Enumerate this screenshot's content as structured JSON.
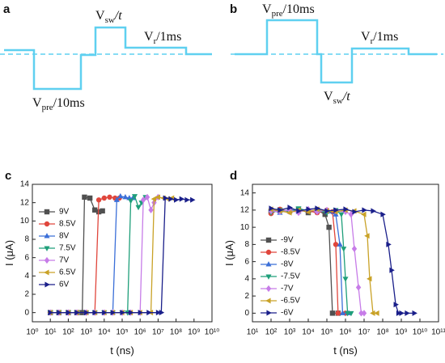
{
  "panel_a": {
    "label": "a",
    "labels": [
      {
        "main": "V",
        "sub": "sw",
        "rest": "/t"
      },
      {
        "main": "V",
        "sub": "r",
        "rest": "/1ms"
      },
      {
        "main": "V",
        "sub": "pre",
        "rest": "/10ms"
      }
    ]
  },
  "panel_b": {
    "label": "b",
    "labels": [
      {
        "main": "V",
        "sub": "pre",
        "rest": "/10ms"
      },
      {
        "main": "V",
        "sub": "r",
        "rest": "/1ms"
      },
      {
        "main": "V",
        "sub": "sw",
        "rest": "/t"
      }
    ]
  },
  "chart_data": [
    {
      "type": "line",
      "panel_label": "c",
      "x_label": "t (ns)",
      "y_label": "I (μA)",
      "log_x": true,
      "legend": "upper left",
      "xlim": [
        1,
        10000000000.0
      ],
      "xticks": [
        {
          "value": 1,
          "label": "10⁰"
        },
        {
          "value": 10.0,
          "label": "10¹"
        },
        {
          "value": 100.0,
          "label": "10²"
        },
        {
          "value": 1000.0,
          "label": "10³"
        },
        {
          "value": 10000.0,
          "label": "10⁴"
        },
        {
          "value": 100000.0,
          "label": "10⁵"
        },
        {
          "value": 1000000.0,
          "label": "10⁶"
        },
        {
          "value": 10000000.0,
          "label": "10⁷"
        },
        {
          "value": 100000000.0,
          "label": "10⁸"
        },
        {
          "value": 1000000000.0,
          "label": "10⁹"
        },
        {
          "value": 10000000000.0,
          "label": "10¹⁰"
        }
      ],
      "ylim": [
        -1,
        14
      ],
      "yticks": [
        0,
        2,
        4,
        6,
        8,
        10,
        12,
        14
      ],
      "series": [
        {
          "name": "9V",
          "color": "#505050",
          "marker": "square",
          "x": [
            10.0,
            30.0,
            100.0,
            300.0,
            600.0,
            800.0,
            1600.0,
            3000.0,
            5000.0,
            8000.0
          ],
          "values": [
            0,
            0,
            0,
            0,
            0,
            12.6,
            12.5,
            11.2,
            11.0,
            11.1
          ]
        },
        {
          "name": "8.5V",
          "color": "#e0463c",
          "marker": "circle",
          "x": [
            10.0,
            30.0,
            100.0,
            300.0,
            1000.0,
            3000.0,
            5000.0,
            10000.0,
            20000.0,
            40000.0,
            70000.0
          ],
          "values": [
            0,
            0,
            0,
            0,
            0,
            0,
            12.3,
            12.5,
            12.6,
            12.5,
            12.5
          ]
        },
        {
          "name": "8V",
          "color": "#3b6fd8",
          "marker": "triangle-up",
          "x": [
            10.0,
            30.0,
            100.0,
            300.0,
            1000.0,
            3000.0,
            10000.0,
            30000.0,
            50000.0,
            80000.0,
            150000.0,
            250000.0,
            400000.0
          ],
          "values": [
            0,
            0,
            0,
            0,
            0,
            0,
            0,
            0,
            12.3,
            12.7,
            12.6,
            12.5,
            12.5
          ]
        },
        {
          "name": "7.5V",
          "color": "#1f9f7a",
          "marker": "triangle-down",
          "x": [
            10.0,
            30.0,
            100.0,
            300.0,
            1000.0,
            3000.0,
            10000.0,
            30000.0,
            100000.0,
            200000.0,
            300000.0,
            500000.0,
            800000.0,
            1200000.0,
            2000000.0
          ],
          "values": [
            0,
            0,
            0,
            0,
            0,
            0,
            0,
            0,
            0,
            0,
            12.2,
            12.7,
            11.5,
            12.0,
            12.6
          ]
        },
        {
          "name": "7V",
          "color": "#c77ce8",
          "marker": "diamond",
          "x": [
            10.0,
            30.0,
            100.0,
            300.0,
            1000.0,
            3000.0,
            10000.0,
            30000.0,
            100000.0,
            300000.0,
            1000000.0,
            1500000.0,
            2500000.0,
            4000000.0,
            6000000.0,
            10000000.0
          ],
          "values": [
            0,
            0,
            0,
            0,
            0,
            0,
            0,
            0,
            0,
            0,
            0,
            12.3,
            12.6,
            11.2,
            12.0,
            12.6
          ]
        },
        {
          "name": "6.5V",
          "color": "#c9a227",
          "marker": "triangle-left",
          "x": [
            10.0,
            30.0,
            100.0,
            300.0,
            1000.0,
            3000.0,
            10000.0,
            30000.0,
            100000.0,
            300000.0,
            1000000.0,
            4000000.0,
            6000000.0,
            10000000.0,
            20000000.0,
            35000000.0,
            60000000.0
          ],
          "values": [
            0,
            0,
            0,
            0,
            0,
            0,
            0,
            0,
            0,
            0,
            0,
            0,
            12.4,
            12.6,
            12.5,
            12.4,
            12.5
          ]
        },
        {
          "name": "6V",
          "color": "#1a1f8a",
          "marker": "triangle-right",
          "x": [
            10.0,
            30.0,
            100.0,
            300.0,
            1000.0,
            3000.0,
            10000.0,
            30000.0,
            100000.0,
            300000.0,
            1000000.0,
            3000000.0,
            10000000.0,
            15000000.0,
            25000000.0,
            50000000.0,
            100000000.0,
            200000000.0,
            400000000.0,
            800000000.0
          ],
          "values": [
            0,
            0,
            0,
            0,
            0,
            0,
            0,
            0,
            0,
            0,
            0,
            0,
            0,
            0,
            12.5,
            12.4,
            12.3,
            12.4,
            12.3,
            12.3
          ]
        }
      ]
    },
    {
      "type": "line",
      "panel_label": "d",
      "x_label": "t (ns)",
      "y_label": "I (μA)",
      "log_x": true,
      "legend": "center left",
      "xlim": [
        10.0,
        100000000000.0
      ],
      "xticks": [
        {
          "value": 10.0,
          "label": "10¹"
        },
        {
          "value": 100.0,
          "label": "10²"
        },
        {
          "value": 1000.0,
          "label": "10³"
        },
        {
          "value": 10000.0,
          "label": "10⁴"
        },
        {
          "value": 100000.0,
          "label": "10⁵"
        },
        {
          "value": 1000000.0,
          "label": "10⁶"
        },
        {
          "value": 10000000.0,
          "label": "10⁷"
        },
        {
          "value": 100000000.0,
          "label": "10⁸"
        },
        {
          "value": 1000000000.0,
          "label": "10⁹"
        },
        {
          "value": 10000000000.0,
          "label": "10¹⁰"
        },
        {
          "value": 100000000000.0,
          "label": "10¹¹"
        }
      ],
      "ylim": [
        -1,
        15
      ],
      "yticks": [
        0,
        2,
        4,
        6,
        8,
        10,
        12,
        14
      ],
      "series": [
        {
          "name": "-9V",
          "color": "#505050",
          "marker": "square",
          "x": [
            100.0,
            300.0,
            1000.0,
            3000.0,
            10000.0,
            30000.0,
            80000.0,
            130000.0,
            200000.0,
            400000.0
          ],
          "values": [
            11.8,
            12.0,
            11.9,
            12.1,
            11.7,
            12.0,
            11.5,
            10.0,
            0,
            0
          ]
        },
        {
          "name": "-8.5V",
          "color": "#e0463c",
          "marker": "circle",
          "x": [
            100.0,
            300.0,
            1000.0,
            3000.0,
            10000.0,
            30000.0,
            100000.0,
            200000.0,
            300000.0,
            400000.0,
            1000000.0
          ],
          "values": [
            11.6,
            12.1,
            11.8,
            12.0,
            11.9,
            11.7,
            12.0,
            11.8,
            8.0,
            0,
            0
          ]
        },
        {
          "name": "-8V",
          "color": "#3b6fd8",
          "marker": "triangle-up",
          "x": [
            100.0,
            300.0,
            1000.0,
            3000.0,
            10000.0,
            30000.0,
            100000.0,
            300000.0,
            500000.0,
            700000.0,
            1500000.0
          ],
          "values": [
            12.0,
            11.7,
            12.1,
            11.8,
            12.0,
            11.9,
            11.8,
            11.5,
            8.0,
            0,
            0
          ]
        },
        {
          "name": "-7.5V",
          "color": "#1f9f7a",
          "marker": "triangle-down",
          "x": [
            100.0,
            300.0,
            1000.0,
            3000.0,
            10000.0,
            30000.0,
            100000.0,
            300000.0,
            600000.0,
            800000.0,
            1000000.0,
            1300000.0,
            2000000.0
          ],
          "values": [
            11.7,
            12.0,
            11.8,
            12.2,
            11.9,
            12.0,
            11.7,
            12.0,
            11.5,
            7.5,
            4.0,
            0,
            0
          ]
        },
        {
          "name": "-7V",
          "color": "#c77ce8",
          "marker": "diamond",
          "x": [
            100.0,
            300.0,
            1000.0,
            3000.0,
            10000.0,
            30000.0,
            100000.0,
            300000.0,
            1000000.0,
            2000000.0,
            3000000.0,
            5000000.0,
            7000000.0,
            10000000.0
          ],
          "values": [
            11.9,
            11.8,
            12.0,
            11.7,
            12.1,
            11.8,
            12.0,
            11.9,
            11.8,
            11.5,
            7.5,
            3.0,
            0,
            0
          ]
        },
        {
          "name": "-6.5V",
          "color": "#c9a227",
          "marker": "triangle-left",
          "x": [
            100.0,
            300.0,
            1000.0,
            3000.0,
            10000.0,
            30000.0,
            100000.0,
            300000.0,
            1000000.0,
            3000000.0,
            10000000.0,
            15000000.0,
            20000000.0,
            30000000.0,
            50000000.0
          ],
          "values": [
            12.1,
            11.9,
            11.7,
            12.0,
            11.8,
            12.1,
            11.9,
            11.8,
            12.0,
            11.9,
            11.5,
            9.0,
            4.0,
            0,
            0
          ]
        },
        {
          "name": "-6V",
          "color": "#1a1f8a",
          "marker": "triangle-right",
          "x": [
            100.0,
            300.0,
            1000.0,
            3000.0,
            10000.0,
            30000.0,
            100000.0,
            300000.0,
            1000000.0,
            3000000.0,
            10000000.0,
            30000000.0,
            100000000.0,
            200000000.0,
            300000000.0,
            500000000.0,
            700000000.0,
            1000000000.0,
            2000000000.0,
            5000000000.0
          ],
          "values": [
            12.2,
            12.0,
            12.3,
            11.9,
            12.1,
            12.2,
            11.9,
            12.0,
            12.1,
            11.8,
            12.0,
            11.9,
            11.5,
            8.0,
            5.0,
            1.0,
            0,
            0,
            0,
            0
          ]
        }
      ]
    }
  ]
}
